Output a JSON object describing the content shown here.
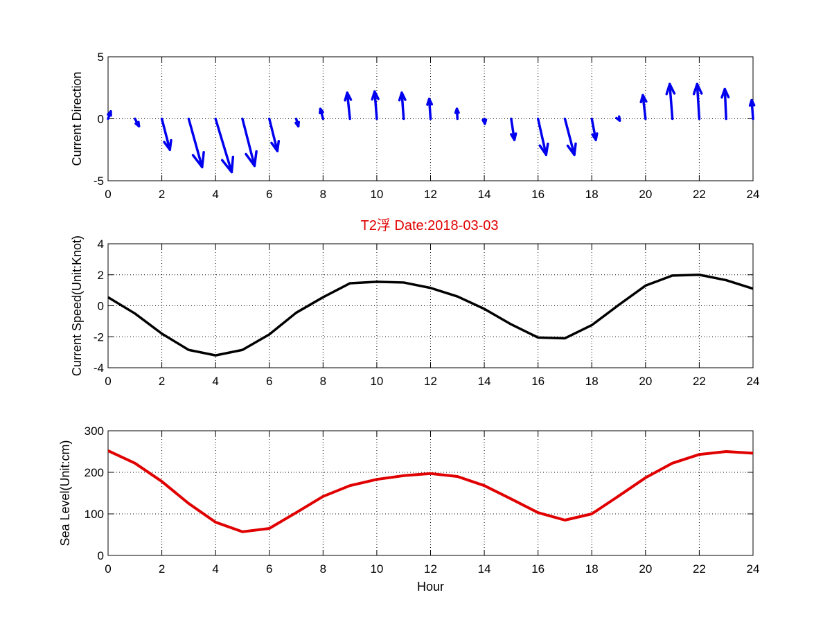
{
  "title": "T2浮   Date:2018-03-03",
  "colors": {
    "title": "#e00000",
    "arrow": "#0000ee",
    "speed": "#000000",
    "level": "#e00000"
  },
  "chart_data": [
    {
      "type": "quiver",
      "ylabel": "Current Direction",
      "xlabel": "",
      "xlim": [
        0,
        24
      ],
      "ylim": [
        -5,
        5
      ],
      "xticks": [
        0,
        2,
        4,
        6,
        8,
        10,
        12,
        14,
        16,
        18,
        20,
        22,
        24
      ],
      "yticks": [
        -5,
        0,
        5
      ],
      "grid": true,
      "x": [
        0,
        1,
        2,
        3,
        4,
        5,
        6,
        7,
        8,
        9,
        10,
        11,
        12,
        13,
        14,
        15,
        16,
        17,
        18,
        19,
        20,
        21,
        22,
        23,
        24
      ],
      "u": [
        0.1,
        0.15,
        0.3,
        0.5,
        0.6,
        0.45,
        0.3,
        0.08,
        -0.1,
        -0.1,
        -0.08,
        -0.07,
        -0.05,
        -0.02,
        0.02,
        0.12,
        0.3,
        0.35,
        0.15,
        0.04,
        -0.1,
        -0.1,
        -0.08,
        -0.05,
        -0.05
      ],
      "v": [
        0.6,
        -0.6,
        -2.5,
        -3.9,
        -4.3,
        -3.8,
        -2.6,
        -0.6,
        0.8,
        2.1,
        2.2,
        2.1,
        1.6,
        0.8,
        -0.4,
        -1.7,
        -2.9,
        -2.9,
        -1.7,
        -0.15,
        1.9,
        2.8,
        2.8,
        2.4,
        1.5
      ]
    },
    {
      "type": "line",
      "ylabel": "Current Speed(Unit:Knot)",
      "xlabel": "",
      "xlim": [
        0,
        24
      ],
      "ylim": [
        -4,
        4
      ],
      "xticks": [
        0,
        2,
        4,
        6,
        8,
        10,
        12,
        14,
        16,
        18,
        20,
        22,
        24
      ],
      "yticks": [
        -4,
        -2,
        0,
        2,
        4
      ],
      "grid": true,
      "x": [
        0,
        1,
        2,
        3,
        4,
        5,
        6,
        7,
        8,
        9,
        10,
        11,
        12,
        13,
        14,
        15,
        16,
        17,
        18,
        19,
        20,
        21,
        22,
        23,
        24
      ],
      "series": [
        {
          "values": [
            0.55,
            -0.5,
            -1.8,
            -2.85,
            -3.2,
            -2.85,
            -1.85,
            -0.45,
            0.55,
            1.45,
            1.55,
            1.5,
            1.15,
            0.6,
            -0.2,
            -1.2,
            -2.05,
            -2.1,
            -1.25,
            0.05,
            1.3,
            1.95,
            2.0,
            1.65,
            1.1
          ]
        }
      ]
    },
    {
      "type": "line",
      "ylabel": "Sea Level(Unit:cm)",
      "xlabel": "Hour",
      "xlim": [
        0,
        24
      ],
      "ylim": [
        0,
        300
      ],
      "xticks": [
        0,
        2,
        4,
        6,
        8,
        10,
        12,
        14,
        16,
        18,
        20,
        22,
        24
      ],
      "yticks": [
        0,
        100,
        200,
        300
      ],
      "grid": true,
      "x": [
        0,
        1,
        2,
        3,
        4,
        5,
        6,
        7,
        8,
        9,
        10,
        11,
        12,
        13,
        14,
        15,
        16,
        17,
        18,
        19,
        20,
        21,
        22,
        23,
        24
      ],
      "series": [
        {
          "values": [
            252,
            222,
            178,
            125,
            80,
            57,
            65,
            103,
            142,
            168,
            183,
            192,
            197,
            190,
            168,
            136,
            103,
            85,
            100,
            143,
            187,
            222,
            243,
            250,
            246
          ]
        }
      ]
    }
  ]
}
